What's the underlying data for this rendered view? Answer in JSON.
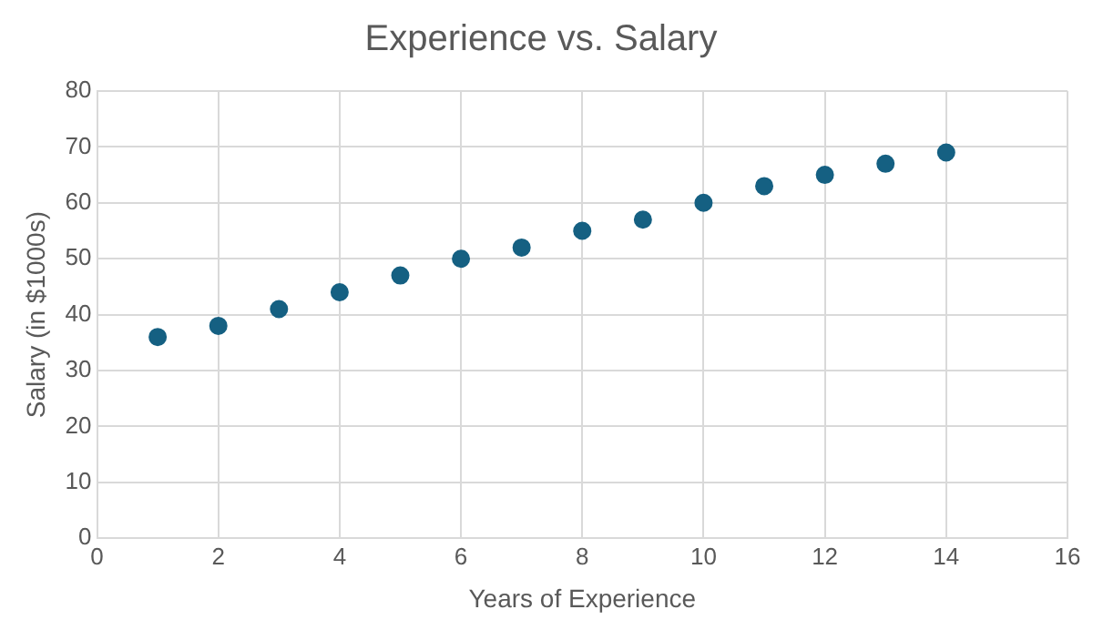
{
  "chart_data": {
    "type": "scatter",
    "title": "Experience vs. Salary",
    "xlabel": "Years of Experience",
    "ylabel": "Salary (in $1000s)",
    "x": [
      1,
      2,
      3,
      4,
      5,
      6,
      7,
      8,
      9,
      10,
      11,
      12,
      13,
      14
    ],
    "values": [
      36,
      38,
      41,
      44,
      47,
      50,
      52,
      55,
      57,
      60,
      63,
      65,
      67,
      69
    ],
    "color": "#156082",
    "xlim": [
      0,
      16
    ],
    "xticks": [
      0,
      2,
      4,
      6,
      8,
      10,
      12,
      14,
      16
    ],
    "ylim": [
      0,
      80
    ],
    "yticks": [
      0,
      10,
      20,
      30,
      40,
      50,
      60,
      70,
      80
    ],
    "grid": true,
    "marker": "circle"
  }
}
